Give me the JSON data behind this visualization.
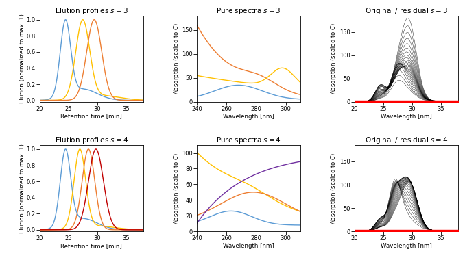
{
  "fig_width": 6.78,
  "fig_height": 3.8,
  "dpi": 100,
  "colors": {
    "blue": "#5B9BD5",
    "orange": "#ED7D31",
    "red_dark": "#C00000",
    "purple": "#7030A0",
    "yellow_orange": "#FFC000",
    "black": "#000000",
    "red_residual": "#FF0000"
  },
  "elution_s3": {
    "title": "Elution profiles $s = 3$",
    "xlabel": "Retention time [min]",
    "ylabel": "Elution (normalized to max. 1)",
    "xlim": [
      20,
      38
    ],
    "ylim": [
      -0.02,
      1.05
    ],
    "xticks": [
      20,
      25,
      30,
      35
    ],
    "yticks": [
      0,
      0.2,
      0.4,
      0.6,
      0.8,
      1.0
    ]
  },
  "spectra_s3": {
    "title": "Pure spectra $s = 3$",
    "xlabel": "Wavelength [nm]",
    "ylabel": "Absorption (scaled to $C$)",
    "xlim": [
      240,
      310
    ],
    "ylim": [
      0,
      180
    ],
    "xticks": [
      240,
      260,
      280,
      300
    ],
    "yticks": [
      0,
      50,
      100,
      150
    ]
  },
  "residual_s3": {
    "title": "Original / residual $s = 3$",
    "xlabel": "Wavelength [nm]",
    "ylabel": "Absorption (scaled to $C$)",
    "xlim": [
      20,
      38
    ],
    "ylim": [
      0,
      185
    ],
    "xticks": [
      20,
      25,
      30,
      35
    ],
    "yticks": [
      0,
      50,
      100,
      150
    ]
  },
  "elution_s4": {
    "title": "Elution profiles $s = 4$",
    "xlabel": "Retention time [min]",
    "ylabel": "Elution (normalized to max. 1)",
    "xlim": [
      20,
      38
    ],
    "ylim": [
      -0.02,
      1.05
    ],
    "xticks": [
      20,
      25,
      30,
      35
    ],
    "yticks": [
      0,
      0.2,
      0.4,
      0.6,
      0.8,
      1.0
    ]
  },
  "spectra_s4": {
    "title": "Pure spectra $s = 4$",
    "xlabel": "Wavelength [nm]",
    "ylabel": "Absorption (scaled to $C$)",
    "xlim": [
      240,
      310
    ],
    "ylim": [
      0,
      110
    ],
    "xticks": [
      240,
      260,
      280,
      300
    ],
    "yticks": [
      0,
      20,
      40,
      60,
      80,
      100
    ]
  },
  "residual_s4": {
    "title": "Original / residual $s = 4$",
    "xlabel": "Wavelength [nm]",
    "ylabel": "Absorption (scaled to $C$)",
    "xlim": [
      20,
      38
    ],
    "ylim": [
      0,
      185
    ],
    "xticks": [
      20,
      25,
      30,
      35
    ],
    "yticks": [
      0,
      50,
      100,
      150
    ]
  }
}
